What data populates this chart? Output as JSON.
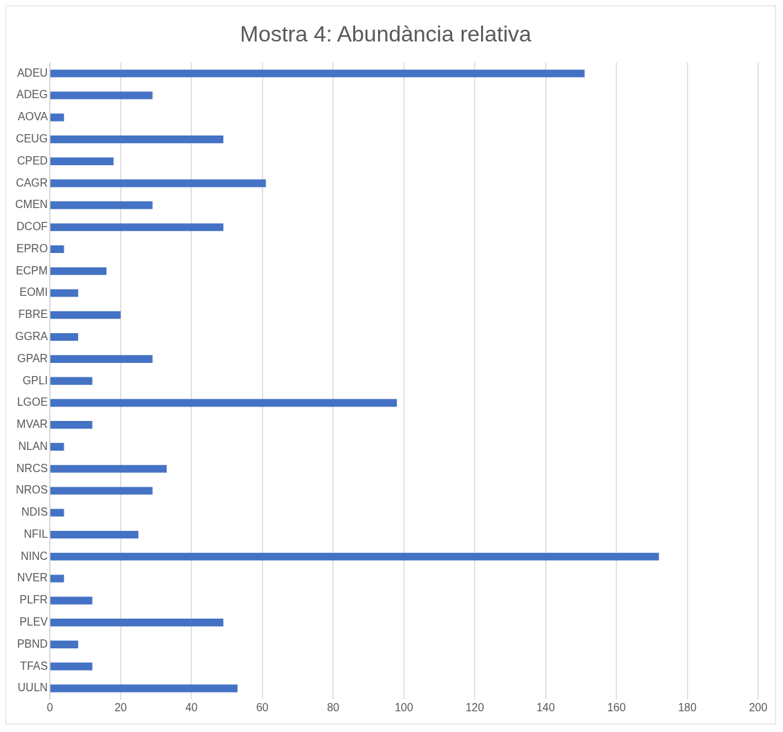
{
  "chart_data": {
    "type": "bar",
    "orientation": "horizontal",
    "title": "Mostra 4: Abundància relativa",
    "categories": [
      "ADEU",
      "ADEG",
      "AOVA",
      "CEUG",
      "CPED",
      "CAGR",
      "CMEN",
      "DCOF",
      "EPRO",
      "ECPM",
      "EOMI",
      "FBRE",
      "GGRA",
      "GPAR",
      "GPLI",
      "LGOE",
      "MVAR",
      "NLAN",
      "NRCS",
      "NROS",
      "NDIS",
      "NFIL",
      "NINC",
      "NVER",
      "PLFR",
      "PLEV",
      "PBND",
      "TFAS",
      "UULN"
    ],
    "values": [
      151,
      29,
      4,
      49,
      18,
      61,
      29,
      49,
      4,
      16,
      8,
      20,
      8,
      29,
      12,
      98,
      12,
      4,
      33,
      29,
      4,
      25,
      172,
      4,
      12,
      49,
      8,
      12,
      53
    ],
    "color": "#4472c4",
    "xlim": [
      0,
      200
    ],
    "xticks": [
      0,
      20,
      40,
      60,
      80,
      100,
      120,
      140,
      160,
      180,
      200
    ],
    "grid": "x",
    "legend": false
  }
}
